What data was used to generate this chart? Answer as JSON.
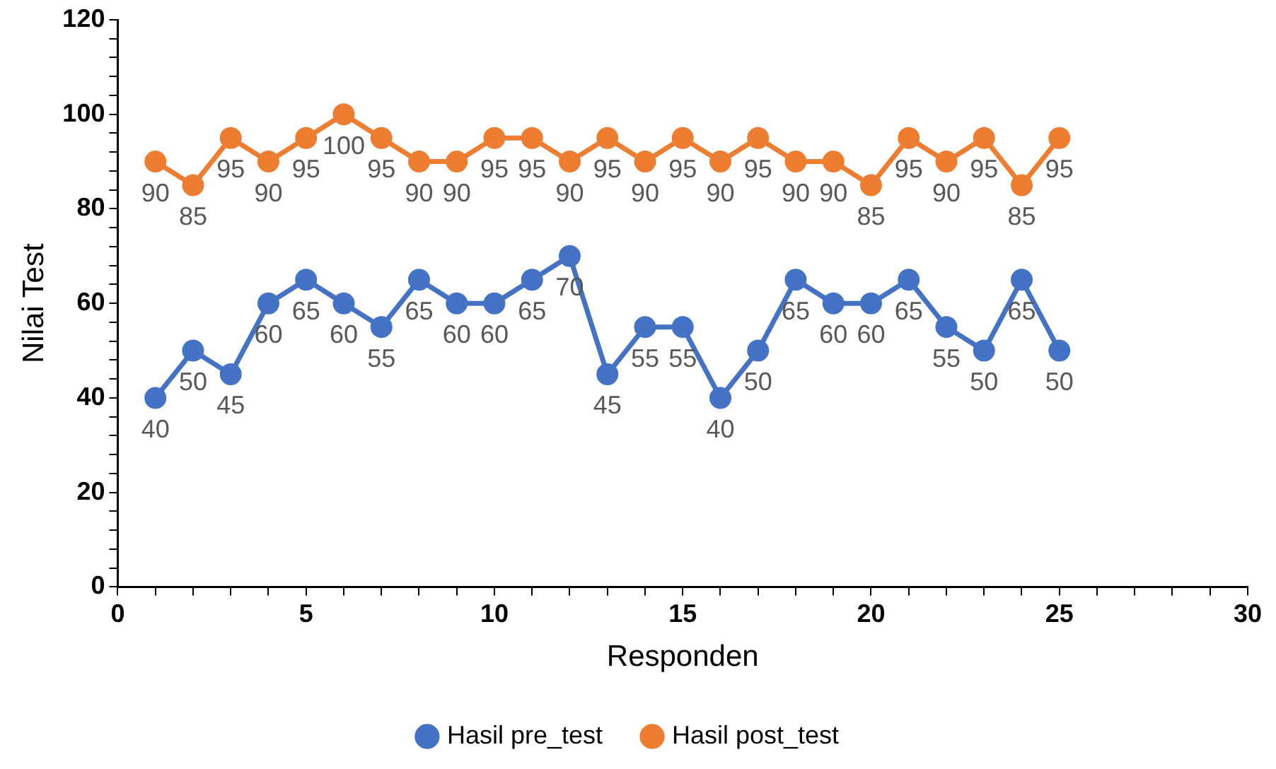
{
  "chart_data": {
    "type": "line",
    "xlabel": "Responden",
    "ylabel": "Nilai Test",
    "x": [
      1,
      2,
      3,
      4,
      5,
      6,
      7,
      8,
      9,
      10,
      11,
      12,
      13,
      14,
      15,
      16,
      17,
      18,
      19,
      20,
      21,
      22,
      23,
      24,
      25
    ],
    "series": [
      {
        "name": "Hasil pre_test",
        "color": "#4472c4",
        "values": [
          40,
          50,
          45,
          60,
          65,
          60,
          55,
          65,
          60,
          60,
          65,
          70,
          45,
          55,
          55,
          40,
          50,
          65,
          60,
          60,
          65,
          55,
          50,
          65,
          50
        ]
      },
      {
        "name": "Hasil post_test",
        "color": "#ed7d31",
        "values": [
          90,
          85,
          95,
          90,
          95,
          100,
          95,
          90,
          90,
          95,
          95,
          90,
          95,
          90,
          95,
          90,
          95,
          90,
          90,
          85,
          95,
          90,
          95,
          85,
          95
        ]
      }
    ],
    "xlim": [
      0,
      30
    ],
    "xticks": [
      0,
      {
        "value": 1,
        "label": null
      },
      {
        "value": 2,
        "label": null
      },
      {
        "value": 3,
        "label": null
      },
      {
        "value": 4,
        "label": null
      },
      5,
      {
        "value": 6,
        "label": null
      },
      {
        "value": 7,
        "label": null
      },
      {
        "value": 8,
        "label": null
      },
      {
        "value": 9,
        "label": null
      },
      10,
      {
        "value": 11,
        "label": null
      },
      {
        "value": 12,
        "label": null
      },
      {
        "value": 13,
        "label": null
      },
      {
        "value": 14,
        "label": null
      },
      15,
      {
        "value": 16,
        "label": null
      },
      {
        "value": 17,
        "label": null
      },
      {
        "value": 18,
        "label": null
      },
      {
        "value": 19,
        "label": null
      },
      20,
      {
        "value": 21,
        "label": null
      },
      {
        "value": 22,
        "label": null
      },
      {
        "value": 23,
        "label": null
      },
      {
        "value": 24,
        "label": null
      },
      25,
      {
        "value": 26,
        "label": null
      },
      {
        "value": 27,
        "label": null
      },
      {
        "value": 28,
        "label": null
      },
      {
        "value": 29,
        "label": null
      },
      30
    ],
    "ylim": [
      0,
      120
    ],
    "yticks": [
      0,
      {
        "value": 4,
        "label": null
      },
      {
        "value": 8,
        "label": null
      },
      {
        "value": 12,
        "label": null
      },
      {
        "value": 16,
        "label": null
      },
      20,
      {
        "value": 24,
        "label": null
      },
      {
        "value": 28,
        "label": null
      },
      {
        "value": 32,
        "label": null
      },
      {
        "value": 36,
        "label": null
      },
      40,
      {
        "value": 44,
        "label": null
      },
      {
        "value": 48,
        "label": null
      },
      {
        "value": 52,
        "label": null
      },
      {
        "value": 56,
        "label": null
      },
      60,
      {
        "value": 64,
        "label": null
      },
      {
        "value": 68,
        "label": null
      },
      {
        "value": 72,
        "label": null
      },
      {
        "value": 76,
        "label": null
      },
      80,
      {
        "value": 84,
        "label": null
      },
      {
        "value": 88,
        "label": null
      },
      {
        "value": 92,
        "label": null
      },
      {
        "value": 96,
        "label": null
      },
      100,
      {
        "value": 104,
        "label": null
      },
      {
        "value": 108,
        "label": null
      },
      {
        "value": 112,
        "label": null
      },
      {
        "value": 116,
        "label": null
      },
      120
    ],
    "grid": false,
    "legend": "bottom",
    "marker": "circle",
    "line_style": "solid",
    "data_labels": true
  }
}
